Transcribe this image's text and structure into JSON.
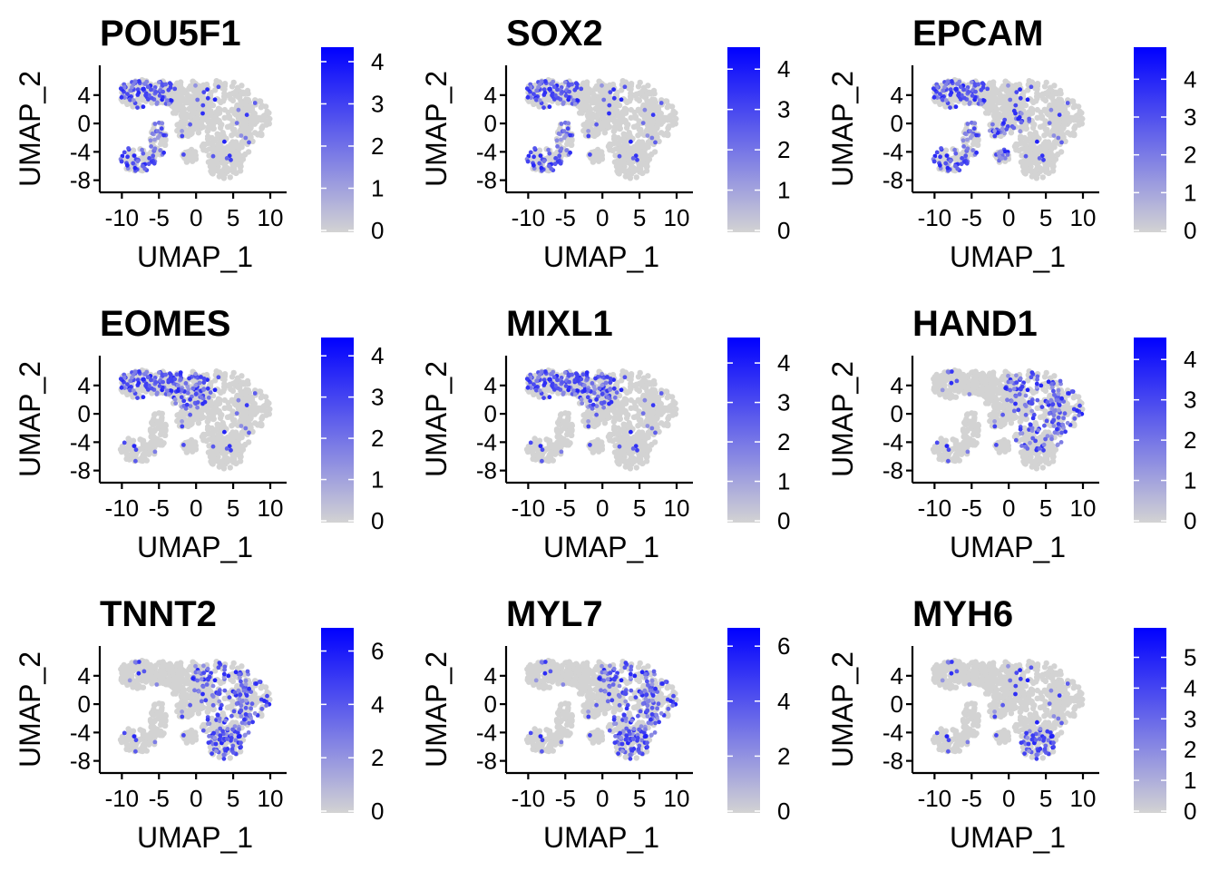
{
  "chart_data": [
    {
      "type": "scatter",
      "title": "POU5F1",
      "xlabel": "UMAP_1",
      "ylabel": "UMAP_2",
      "xticks": [
        "-10",
        "-5",
        "0",
        "5",
        "10"
      ],
      "yticks": [
        "-8",
        "-4",
        "0",
        "4"
      ],
      "xlim": [
        -12,
        12.2
      ],
      "ylim": [
        -9.2,
        8.2
      ],
      "legend": {
        "min": 0,
        "max": 4.3,
        "ticks": [
          "0",
          "1",
          "2",
          "3",
          "4"
        ],
        "low_color": "#D3D3D3",
        "high_color": "#0000FF"
      },
      "expression_regions": [
        "upper-left lobe",
        "lower-left lobe"
      ]
    },
    {
      "type": "scatter",
      "title": "SOX2",
      "xlabel": "UMAP_1",
      "ylabel": "UMAP_2",
      "xticks": [
        "-10",
        "-5",
        "0",
        "5",
        "10"
      ],
      "yticks": [
        "-8",
        "-4",
        "0",
        "4"
      ],
      "xlim": [
        -12,
        12.2
      ],
      "ylim": [
        -9.2,
        8.2
      ],
      "legend": {
        "min": 0,
        "max": 4.5,
        "ticks": [
          "0",
          "1",
          "2",
          "3",
          "4"
        ],
        "low_color": "#D3D3D3",
        "high_color": "#0000FF"
      },
      "expression_regions": [
        "upper-left lobe",
        "lower-left lobe"
      ]
    },
    {
      "type": "scatter",
      "title": "EPCAM",
      "xlabel": "UMAP_1",
      "ylabel": "UMAP_2",
      "xticks": [
        "-10",
        "-5",
        "0",
        "5",
        "10"
      ],
      "yticks": [
        "-8",
        "-4",
        "0",
        "4"
      ],
      "xlim": [
        -12,
        12.2
      ],
      "ylim": [
        -9.2,
        8.2
      ],
      "legend": {
        "min": 0,
        "max": 4.8,
        "ticks": [
          "0",
          "1",
          "2",
          "3",
          "4"
        ],
        "low_color": "#D3D3D3",
        "high_color": "#0000FF"
      },
      "expression_regions": [
        "upper-left lobe",
        "lower-left lobe",
        "center"
      ]
    },
    {
      "type": "scatter",
      "title": "EOMES",
      "xlabel": "UMAP_1",
      "ylabel": "UMAP_2",
      "xticks": [
        "-10",
        "-5",
        "0",
        "5",
        "10"
      ],
      "yticks": [
        "-8",
        "-4",
        "0",
        "4"
      ],
      "xlim": [
        -12,
        12.2
      ],
      "ylim": [
        -9.2,
        8.2
      ],
      "legend": {
        "min": 0,
        "max": 4.4,
        "ticks": [
          "0",
          "1",
          "2",
          "3",
          "4"
        ],
        "low_color": "#D3D3D3",
        "high_color": "#0000FF"
      },
      "expression_regions": [
        "upper-left lobe",
        "upper-center"
      ]
    },
    {
      "type": "scatter",
      "title": "MIXL1",
      "xlabel": "UMAP_1",
      "ylabel": "UMAP_2",
      "xticks": [
        "-10",
        "-5",
        "0",
        "5",
        "10"
      ],
      "yticks": [
        "-8",
        "-4",
        "0",
        "4"
      ],
      "xlim": [
        -12,
        12.2
      ],
      "ylim": [
        -9.2,
        8.2
      ],
      "legend": {
        "min": 0,
        "max": 4.6,
        "ticks": [
          "0",
          "1",
          "2",
          "3",
          "4"
        ],
        "low_color": "#D3D3D3",
        "high_color": "#0000FF"
      },
      "expression_regions": [
        "upper-left lobe",
        "upper-center"
      ]
    },
    {
      "type": "scatter",
      "title": "HAND1",
      "xlabel": "UMAP_1",
      "ylabel": "UMAP_2",
      "xticks": [
        "-10",
        "-5",
        "0",
        "5",
        "10"
      ],
      "yticks": [
        "-8",
        "-4",
        "0",
        "4"
      ],
      "xlim": [
        -12,
        12.2
      ],
      "ylim": [
        -9.2,
        8.2
      ],
      "legend": {
        "min": 0,
        "max": 4.5,
        "ticks": [
          "0",
          "1",
          "2",
          "3",
          "4"
        ],
        "low_color": "#D3D3D3",
        "high_color": "#0000FF"
      },
      "expression_regions": [
        "right region"
      ]
    },
    {
      "type": "scatter",
      "title": "TNNT2",
      "xlabel": "UMAP_1",
      "ylabel": "UMAP_2",
      "xticks": [
        "-10",
        "-5",
        "0",
        "5",
        "10"
      ],
      "yticks": [
        "-8",
        "-4",
        "0",
        "4"
      ],
      "xlim": [
        -12,
        12.2
      ],
      "ylim": [
        -9.2,
        8.2
      ],
      "legend": {
        "min": 0,
        "max": 6.8,
        "ticks": [
          "0",
          "2",
          "4",
          "6"
        ],
        "low_color": "#D3D3D3",
        "high_color": "#0000FF"
      },
      "expression_regions": [
        "lower-right bulge",
        "right region"
      ]
    },
    {
      "type": "scatter",
      "title": "MYL7",
      "xlabel": "UMAP_1",
      "ylabel": "UMAP_2",
      "xticks": [
        "-10",
        "-5",
        "0",
        "5",
        "10"
      ],
      "yticks": [
        "-8",
        "-4",
        "0",
        "4"
      ],
      "xlim": [
        -12,
        12.2
      ],
      "ylim": [
        -9.2,
        8.2
      ],
      "legend": {
        "min": 0,
        "max": 6.6,
        "ticks": [
          "0",
          "2",
          "4",
          "6"
        ],
        "low_color": "#D3D3D3",
        "high_color": "#0000FF"
      },
      "expression_regions": [
        "lower-right bulge",
        "right region"
      ]
    },
    {
      "type": "scatter",
      "title": "MYH6",
      "xlabel": "UMAP_1",
      "ylabel": "UMAP_2",
      "xticks": [
        "-10",
        "-5",
        "0",
        "5",
        "10"
      ],
      "yticks": [
        "-8",
        "-4",
        "0",
        "4"
      ],
      "xlim": [
        -12,
        12.2
      ],
      "ylim": [
        -9.2,
        8.2
      ],
      "legend": {
        "min": 0,
        "max": 5.9,
        "ticks": [
          "0",
          "1",
          "2",
          "3",
          "4",
          "5"
        ],
        "low_color": "#D3D3D3",
        "high_color": "#0000FF"
      },
      "expression_regions": [
        "lower-right bulge"
      ]
    }
  ]
}
